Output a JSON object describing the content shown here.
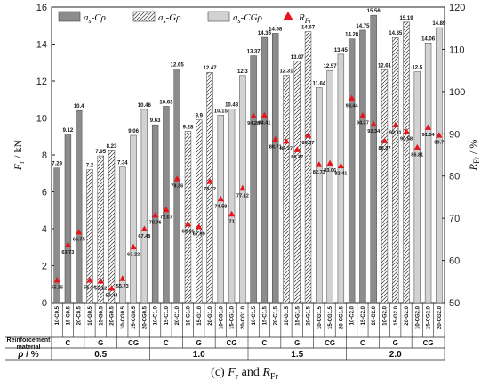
{
  "chart_data": {
    "type": "bar",
    "ylabel_left": "F_r / kN",
    "ylabel_right": "R_Fr / %",
    "ylim_left": [
      0,
      16
    ],
    "ylim_right": [
      50,
      120
    ],
    "yticks_left": [
      "0",
      "2",
      "4",
      "6",
      "8",
      "10",
      "12",
      "14",
      "16"
    ],
    "yticks_right": [
      "50",
      "60",
      "70",
      "80",
      "90",
      "100",
      "110",
      "120"
    ],
    "categories": [
      "10-C0.5",
      "15-C0.5",
      "20-C0.5",
      "10-G0.5",
      "15-G0.5",
      "20-G0.5",
      "10-CG0.5",
      "15-CG0.5",
      "20-CG0.5",
      "10-C1.0",
      "15-C1.0",
      "20-C1.0",
      "10-G1.0",
      "15-G1.0",
      "20-G1.0",
      "10-CG1.0",
      "15-CG1.0",
      "20-CG1.0",
      "10-C1.5",
      "15-C1.5",
      "20-C1.5",
      "10-G1.5",
      "15-G1.5",
      "20-G1.5",
      "10-CG1.5",
      "15-CG1.5",
      "20-CG1.5",
      "10-C2.0",
      "15-C2.0",
      "20-C2.0",
      "10-G2.0",
      "15-G2.0",
      "20-G2.0",
      "10-CG2.0",
      "15-CG2.0",
      "20-CG2.0"
    ],
    "series": [
      {
        "name": "a_s-Cρ",
        "type": "bar",
        "style": "dark",
        "color": "#8c8c8c",
        "values": [
          7.29,
          9.12,
          10.4,
          7.2,
          7.95,
          8.23,
          7.34,
          9.06,
          10.46,
          9.63,
          10.63,
          12.65,
          9.28,
          9.9,
          12.47,
          10.15,
          10.48,
          12.3,
          13.37,
          14.36,
          14.58,
          12.31,
          13.07,
          14.67,
          11.64,
          12.57,
          13.45,
          14.28,
          14.75,
          15.56,
          12.61,
          14.35,
          15.19,
          12.5,
          14.06,
          14.89
        ]
      },
      {
        "name": "R_Fr",
        "type": "scatter",
        "axis": "right",
        "color": "#e8141b",
        "values": [
          55.35,
          63.73,
          66.75,
          55.34,
          55.12,
          53.44,
          55.73,
          63.22,
          67.48,
          70.76,
          72.07,
          79.36,
          68.66,
          67.99,
          78.72,
          74.58,
          71,
          77.12,
          94.28,
          94.41,
          88.71,
          88.27,
          86.27,
          89.67,
          82.73,
          83.06,
          82.41,
          98.44,
          94.37,
          92.34,
          88.37,
          92.11,
          90.58,
          86.81,
          91.54,
          89.7
        ]
      }
    ],
    "bar_styles": {
      "C": "dark",
      "G": "hatched",
      "CG": "light"
    },
    "bar_colors": {
      "dark": "#8c8c8c",
      "light": "#d2d2d2",
      "hatched_stroke": "#333333"
    },
    "legend": [
      {
        "label": "a_s-Cρ",
        "style": "dark"
      },
      {
        "label": "a_s-Gρ",
        "style": "hatched"
      },
      {
        "label": "a_s-CGρ",
        "style": "light"
      },
      {
        "label": "R_Fr",
        "style": "triangle"
      }
    ],
    "legend_position": "top-left",
    "row_labels": {
      "material_title": "Reinforcement material",
      "materials": [
        "C",
        "G",
        "CG",
        "C",
        "G",
        "CG",
        "C",
        "G",
        "CG",
        "C",
        "G",
        "CG"
      ],
      "rho_title": "ρ / %",
      "rho_values": [
        "0.5",
        "1.0",
        "1.5",
        "2.0"
      ]
    },
    "grid": false
  },
  "caption": {
    "prefix": "(c) ",
    "f": "F",
    "f_sub": "r",
    "mid": " and ",
    "r": "R",
    "r_sub": "Fr"
  }
}
